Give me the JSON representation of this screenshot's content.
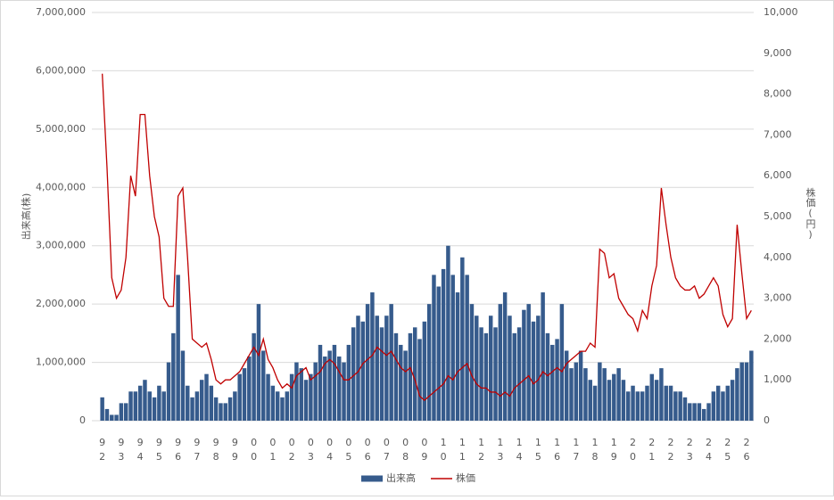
{
  "chart_data": {
    "type": "bar-line",
    "categories": [
      "92",
      null,
      null,
      null,
      "93",
      null,
      null,
      null,
      "94",
      null,
      null,
      null,
      "95",
      null,
      null,
      null,
      "96",
      null,
      null,
      null,
      "97",
      null,
      null,
      null,
      "98",
      null,
      null,
      null,
      "99",
      null,
      null,
      null,
      "00",
      null,
      null,
      null,
      "01",
      null,
      null,
      null,
      "02",
      null,
      null,
      null,
      "03",
      null,
      null,
      null,
      "04",
      null,
      null,
      null,
      "05",
      null,
      null,
      null,
      "06",
      null,
      null,
      null,
      "07",
      null,
      null,
      null,
      "08",
      null,
      null,
      null,
      "09",
      null,
      null,
      null,
      "10",
      null,
      null,
      null,
      "11",
      null,
      null,
      null,
      "12",
      null,
      null,
      null,
      "13",
      null,
      null,
      null,
      "14",
      null,
      null,
      null,
      "15",
      null,
      null,
      null,
      "16",
      null,
      null,
      null,
      "17",
      null,
      null,
      null,
      "18",
      null,
      null,
      null,
      "19",
      null,
      null,
      null,
      "20",
      null,
      null,
      null,
      "21",
      null,
      null,
      null,
      "22",
      null,
      null,
      null,
      "23",
      null,
      null,
      null,
      "24",
      null,
      null,
      null,
      "25",
      null,
      null,
      null,
      "26",
      null
    ],
    "series": [
      {
        "name": "出来高",
        "color": "#365b8c",
        "kind": "bar",
        "values": [
          400000,
          200000,
          100000,
          100000,
          300000,
          300000,
          500000,
          500000,
          600000,
          700000,
          500000,
          400000,
          600000,
          500000,
          1000000,
          1500000,
          2500000,
          1200000,
          600000,
          400000,
          500000,
          700000,
          800000,
          600000,
          400000,
          300000,
          300000,
          400000,
          500000,
          800000,
          900000,
          1100000,
          1500000,
          2000000,
          1200000,
          800000,
          600000,
          500000,
          400000,
          500000,
          800000,
          1000000,
          900000,
          700000,
          800000,
          1000000,
          1300000,
          1100000,
          1200000,
          1300000,
          1100000,
          1000000,
          1300000,
          1600000,
          1800000,
          1700000,
          2000000,
          2200000,
          1800000,
          1600000,
          1800000,
          2000000,
          1500000,
          1300000,
          1200000,
          1500000,
          1600000,
          1400000,
          1700000,
          2000000,
          2500000,
          2300000,
          2600000,
          3000000,
          2500000,
          2200000,
          2800000,
          2500000,
          2000000,
          1800000,
          1600000,
          1500000,
          1800000,
          1600000,
          2000000,
          2200000,
          1800000,
          1500000,
          1600000,
          1900000,
          2000000,
          1700000,
          1800000,
          2200000,
          1500000,
          1300000,
          1400000,
          2000000,
          1200000,
          900000,
          1000000,
          1200000,
          900000,
          700000,
          600000,
          1000000,
          900000,
          700000,
          800000,
          900000,
          700000,
          500000,
          600000,
          500000,
          500000,
          600000,
          800000,
          700000,
          900000,
          600000,
          600000,
          500000,
          500000,
          400000,
          300000,
          300000,
          300000,
          200000,
          300000,
          500000,
          600000,
          500000,
          600000,
          700000,
          900000,
          1000000,
          1000000,
          1200000
        ]
      },
      {
        "name": "株価",
        "color": "#c00000",
        "kind": "line",
        "axis": "y2",
        "values": [
          8500,
          6200,
          3500,
          3000,
          3200,
          4000,
          6000,
          5500,
          7500,
          7500,
          6000,
          5000,
          4500,
          3000,
          2800,
          2800,
          5500,
          5700,
          4000,
          2000,
          1900,
          1800,
          1900,
          1500,
          1000,
          900,
          1000,
          1000,
          1100,
          1200,
          1400,
          1600,
          1800,
          1600,
          2000,
          1500,
          1300,
          1000,
          800,
          900,
          800,
          1100,
          1200,
          1300,
          1000,
          1100,
          1200,
          1400,
          1500,
          1400,
          1200,
          1000,
          1000,
          1100,
          1200,
          1400,
          1500,
          1600,
          1800,
          1700,
          1600,
          1700,
          1500,
          1300,
          1200,
          1300,
          1000,
          600,
          500,
          600,
          700,
          800,
          900,
          1100,
          1000,
          1200,
          1300,
          1400,
          1100,
          900,
          800,
          800,
          700,
          700,
          600,
          700,
          600,
          800,
          900,
          1000,
          1100,
          900,
          1000,
          1200,
          1100,
          1200,
          1300,
          1200,
          1400,
          1500,
          1600,
          1700,
          1700,
          1900,
          1800,
          4200,
          4100,
          3500,
          3600,
          3000,
          2800,
          2600,
          2500,
          2200,
          2700,
          2500,
          3300,
          3800,
          5700,
          4800,
          4000,
          3500,
          3300,
          3200,
          3200,
          3300,
          3000,
          3100,
          3300,
          3500,
          3300,
          2600,
          2300,
          2500,
          4800,
          3600,
          2500,
          2700
        ]
      }
    ],
    "ylabel": "出来高(株)",
    "y2label": "株価(円)",
    "ylim": [
      0,
      7000000
    ],
    "yticks": [
      0,
      {
        "value": 1000000,
        "label": "1,000,000"
      },
      {
        "value": 2000000,
        "label": "2,000,000"
      },
      {
        "value": 3000000,
        "label": "3,000,000"
      },
      {
        "value": 4000000,
        "label": "4,000,000"
      },
      {
        "value": 5000000,
        "label": "5,000,000"
      },
      {
        "value": 6000000,
        "label": "6,000,000"
      },
      {
        "value": 7000000,
        "label": "7,000,000"
      }
    ],
    "y2lim": [
      0,
      10000
    ],
    "y2ticks": [
      0,
      {
        "value": 1000,
        "label": "1,000"
      },
      {
        "value": 2000,
        "label": "2,000"
      },
      {
        "value": 3000,
        "label": "3,000"
      },
      {
        "value": 4000,
        "label": "4,000"
      },
      {
        "value": 5000,
        "label": "5,000"
      },
      {
        "value": 6000,
        "label": "6,000"
      },
      {
        "value": 7000,
        "label": "7,000"
      },
      {
        "value": 8000,
        "label": "8,000"
      },
      {
        "value": 9000,
        "label": "9,000"
      },
      {
        "value": 10000,
        "label": "10,000"
      }
    ],
    "grid": true,
    "legend": "bottom"
  }
}
